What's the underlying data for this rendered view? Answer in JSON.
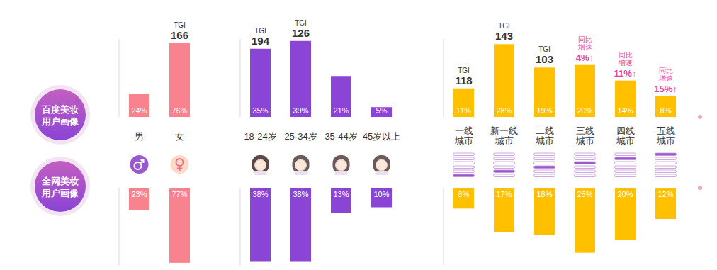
{
  "chart_data": [
    {
      "type": "bar",
      "categories": [
        "男",
        "女"
      ],
      "ylim": [
        0,
        80
      ],
      "yticks": [],
      "tick_labels": "x",
      "data_labels": true,
      "tgi_label": "TGI",
      "series": [
        {
          "name": "百度美妆用户画像",
          "color": "#f8838f",
          "values": [
            24,
            76
          ],
          "value_labels": [
            "24%",
            "76%"
          ],
          "tgi": [
            null,
            166
          ]
        },
        {
          "name": "全网美妆用户画像",
          "color": "#f8838f",
          "values": [
            23,
            77
          ],
          "value_labels": [
            "23%",
            "77%"
          ]
        }
      ]
    },
    {
      "type": "bar",
      "categories": [
        "18-24岁",
        "25-34岁",
        "35-44岁",
        "45岁以上"
      ],
      "ylim": [
        0,
        40
      ],
      "yticks": [],
      "tick_labels": "x",
      "data_labels": true,
      "tgi_label": "TGI",
      "series": [
        {
          "name": "百度美妆用户画像",
          "color": "#8a44d6",
          "values": [
            35,
            39,
            21,
            5
          ],
          "value_labels": [
            "35%",
            "39%",
            "21%",
            "5%"
          ],
          "tgi": [
            194,
            126,
            null,
            null
          ]
        },
        {
          "name": "全网美妆用户画像",
          "color": "#8a44d6",
          "values": [
            38,
            38,
            13,
            10
          ],
          "value_labels": [
            "38%",
            "38%",
            "13%",
            "10%"
          ]
        }
      ]
    },
    {
      "type": "bar",
      "categories": [
        "一线城市",
        "新一线城市",
        "二线城市",
        "三线城市",
        "四线城市",
        "五线城市"
      ],
      "ylim": [
        0,
        30
      ],
      "yticks": [],
      "tick_labels": "x",
      "data_labels": true,
      "tgi_label": "TGI",
      "growth_label": "同比增速",
      "series": [
        {
          "name": "百度美妆用户画像",
          "color": "#ffc000",
          "values": [
            11,
            28,
            19,
            20,
            14,
            8
          ],
          "value_labels": [
            "11%",
            "28%",
            "19%",
            "20%",
            "14%",
            "8%"
          ],
          "tgi": [
            118,
            143,
            103,
            null,
            null,
            null
          ],
          "growth": [
            null,
            null,
            null,
            "4%↑",
            "11%↑",
            "15%↑"
          ]
        },
        {
          "name": "全网美妆用户画像",
          "color": "#ffc000",
          "values": [
            8,
            17,
            18,
            25,
            20,
            12
          ],
          "value_labels": [
            "8%",
            "17%",
            "18%",
            "25%",
            "20%",
            "12%"
          ]
        }
      ]
    }
  ]
}
